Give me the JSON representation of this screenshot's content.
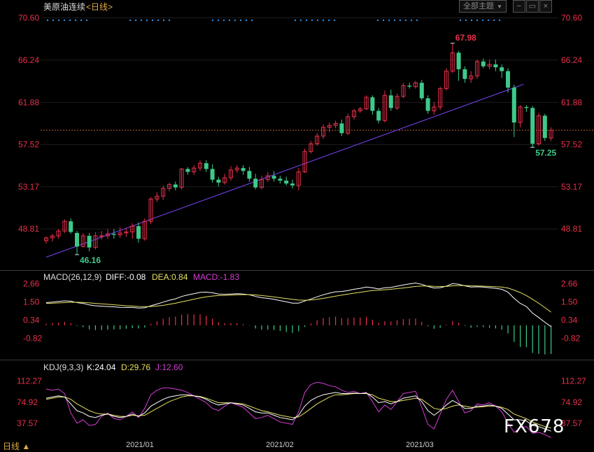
{
  "header": {
    "instrument": "美原油连续",
    "period": "<日线>",
    "theme_button": "全部主题",
    "theme_arrow": "▼"
  },
  "macd": {
    "title": "MACD(26,12,9)",
    "diff_label": "DIFF:-0.08",
    "dea_label": "DEA:0.84",
    "macd_label": "MACD:-1.83",
    "ticks": [
      "2.66",
      "1.50",
      "0.34",
      "-0.82"
    ]
  },
  "kdj": {
    "title": "KDJ(9,3,3)",
    "k_label": "K:24.04",
    "d_label": "D:29.76",
    "j_label": "J:12.60",
    "ticks": [
      "112.27",
      "74.92",
      "37.57"
    ]
  },
  "footer": {
    "period_label": "日线 ▲",
    "watermark": "FX678"
  },
  "colors": {
    "up": "#e8304a",
    "down": "#3ec98a",
    "trendline": "#6a3cd6",
    "dots": "#2a8ee8",
    "diff": "#ffffff",
    "dea": "#e8e060",
    "j": "#d63cd6",
    "axis_text": "#e8304a"
  },
  "chart_data": {
    "type": "candlestick",
    "title": "美原油连续 <日线>",
    "ylim": [
      45.0,
      71.0
    ],
    "y_ticks": [
      48.81,
      53.17,
      57.52,
      61.88,
      66.24,
      70.6
    ],
    "x_ticks": [
      "2021/01",
      "2021/02",
      "2021/03"
    ],
    "high_annotation": "67.98",
    "low_annotation": "46.16",
    "last_low_annotation": "57.25",
    "reference_line": 59.0,
    "trendline": [
      [
        0,
        45.9
      ],
      [
        73,
        63.6
      ]
    ],
    "candles": [
      [
        47.6,
        47.9,
        47.3,
        48.0
      ],
      [
        47.9,
        48.1,
        47.5,
        48.3
      ],
      [
        48.1,
        48.6,
        47.8,
        48.8
      ],
      [
        48.6,
        49.6,
        48.4,
        49.8
      ],
      [
        49.6,
        48.5,
        48.3,
        49.9
      ],
      [
        48.4,
        47.0,
        46.16,
        48.6
      ],
      [
        47.0,
        48.1,
        46.9,
        48.4
      ],
      [
        48.1,
        46.9,
        46.5,
        48.4
      ],
      [
        46.9,
        48.1,
        46.7,
        48.5
      ],
      [
        48.1,
        48.1,
        47.7,
        48.6
      ],
      [
        48.1,
        48.3,
        47.8,
        48.8
      ],
      [
        48.3,
        48.2,
        47.8,
        48.8
      ],
      [
        48.2,
        48.4,
        47.9,
        49.0
      ],
      [
        48.4,
        48.5,
        48.0,
        48.9
      ],
      [
        48.5,
        49.1,
        47.8,
        49.4
      ],
      [
        49.1,
        47.8,
        47.4,
        49.5
      ],
      [
        47.8,
        49.6,
        47.6,
        49.9
      ],
      [
        49.6,
        51.9,
        49.3,
        52.1
      ],
      [
        51.9,
        52.2,
        51.6,
        52.6
      ],
      [
        52.2,
        53.0,
        51.8,
        53.3
      ],
      [
        53.0,
        53.4,
        52.7,
        53.6
      ],
      [
        53.4,
        53.1,
        52.8,
        53.7
      ],
      [
        53.1,
        55.0,
        52.9,
        55.1
      ],
      [
        55.0,
        54.7,
        54.4,
        55.2
      ],
      [
        54.7,
        55.1,
        54.4,
        55.4
      ],
      [
        55.1,
        55.6,
        54.8,
        55.9
      ],
      [
        55.6,
        55.0,
        54.7,
        55.9
      ],
      [
        55.0,
        53.9,
        53.6,
        55.5
      ],
      [
        53.9,
        53.6,
        53.2,
        54.2
      ],
      [
        53.6,
        54.1,
        53.4,
        54.5
      ],
      [
        54.1,
        54.9,
        53.8,
        55.3
      ],
      [
        54.9,
        55.1,
        54.6,
        55.4
      ],
      [
        55.1,
        54.8,
        54.4,
        55.4
      ],
      [
        54.8,
        54.0,
        53.7,
        55.2
      ],
      [
        54.0,
        53.1,
        52.9,
        54.5
      ],
      [
        53.1,
        53.9,
        52.9,
        54.3
      ],
      [
        53.9,
        54.3,
        53.7,
        54.7
      ],
      [
        54.3,
        54.0,
        53.7,
        54.8
      ],
      [
        54.0,
        53.8,
        53.5,
        54.3
      ],
      [
        53.8,
        53.5,
        53.3,
        54.2
      ],
      [
        53.5,
        53.3,
        53.0,
        53.9
      ],
      [
        53.3,
        54.7,
        52.8,
        55.1
      ],
      [
        54.7,
        56.8,
        54.6,
        57.1
      ],
      [
        56.8,
        57.6,
        56.6,
        57.9
      ],
      [
        57.6,
        58.4,
        57.4,
        58.7
      ],
      [
        58.4,
        59.3,
        58.1,
        59.6
      ],
      [
        59.3,
        59.5,
        58.8,
        59.8
      ],
      [
        59.5,
        59.7,
        59.2,
        60.0
      ],
      [
        59.7,
        58.7,
        58.4,
        60.1
      ],
      [
        58.7,
        60.4,
        58.5,
        60.7
      ],
      [
        60.4,
        61.0,
        60.1,
        61.2
      ],
      [
        61.0,
        61.2,
        60.8,
        61.4
      ],
      [
        61.2,
        62.4,
        61.1,
        62.6
      ],
      [
        62.4,
        61.0,
        60.6,
        62.6
      ],
      [
        61.0,
        60.0,
        59.7,
        61.3
      ],
      [
        60.0,
        62.6,
        59.8,
        63.1
      ],
      [
        62.6,
        61.3,
        61.0,
        63.2
      ],
      [
        61.3,
        62.5,
        61.1,
        62.8
      ],
      [
        62.5,
        63.6,
        62.3,
        63.9
      ],
      [
        63.6,
        63.5,
        63.3,
        63.9
      ],
      [
        63.5,
        63.9,
        63.3,
        64.1
      ],
      [
        63.9,
        62.3,
        62.1,
        64.2
      ],
      [
        62.3,
        61.0,
        60.7,
        62.6
      ],
      [
        61.0,
        61.4,
        60.6,
        61.9
      ],
      [
        61.4,
        63.3,
        61.1,
        63.5
      ],
      [
        63.3,
        65.1,
        63.1,
        65.4
      ],
      [
        65.1,
        67.0,
        64.9,
        67.98
      ],
      [
        67.0,
        65.3,
        64.1,
        67.2
      ],
      [
        65.3,
        64.3,
        63.9,
        65.6
      ],
      [
        64.3,
        64.6,
        63.9,
        65.1
      ],
      [
        64.6,
        66.1,
        64.3,
        66.3
      ],
      [
        66.1,
        65.6,
        65.4,
        66.4
      ],
      [
        65.6,
        65.8,
        65.3,
        66.3
      ],
      [
        65.8,
        65.5,
        65.1,
        66.3
      ],
      [
        65.5,
        65.1,
        64.4,
        65.8
      ],
      [
        65.1,
        63.4,
        62.9,
        65.4
      ],
      [
        63.4,
        59.8,
        58.3,
        63.7
      ],
      [
        59.8,
        61.4,
        59.3,
        61.6
      ],
      [
        61.4,
        61.3,
        60.9,
        61.6
      ],
      [
        61.3,
        57.6,
        57.25,
        61.5
      ],
      [
        57.6,
        60.5,
        57.4,
        60.8
      ],
      [
        60.5,
        58.2,
        57.9,
        60.7
      ],
      [
        58.2,
        59.0,
        57.9,
        59.3
      ]
    ],
    "macd_ylim": [
      -2.1,
      2.9
    ],
    "diff": [
      1.45,
      1.48,
      1.52,
      1.56,
      1.54,
      1.45,
      1.4,
      1.3,
      1.25,
      1.22,
      1.2,
      1.18,
      1.15,
      1.14,
      1.14,
      1.1,
      1.12,
      1.25,
      1.36,
      1.48,
      1.6,
      1.69,
      1.84,
      1.94,
      2.02,
      2.1,
      2.12,
      2.08,
      2.0,
      1.98,
      2.0,
      2.02,
      2.0,
      1.95,
      1.84,
      1.76,
      1.72,
      1.66,
      1.58,
      1.5,
      1.42,
      1.42,
      1.55,
      1.68,
      1.82,
      1.95,
      2.05,
      2.14,
      2.16,
      2.22,
      2.3,
      2.36,
      2.44,
      2.4,
      2.32,
      2.4,
      2.42,
      2.5,
      2.58,
      2.64,
      2.7,
      2.62,
      2.48,
      2.38,
      2.4,
      2.5,
      2.66,
      2.62,
      2.52,
      2.44,
      2.46,
      2.44,
      2.4,
      2.36,
      2.3,
      2.12,
      1.72,
      1.4,
      1.2,
      0.78,
      0.5,
      0.2,
      -0.08
    ],
    "dea": [
      1.4,
      1.41,
      1.43,
      1.45,
      1.47,
      1.47,
      1.46,
      1.43,
      1.4,
      1.37,
      1.34,
      1.31,
      1.28,
      1.25,
      1.23,
      1.2,
      1.19,
      1.2,
      1.23,
      1.27,
      1.34,
      1.41,
      1.5,
      1.58,
      1.67,
      1.75,
      1.82,
      1.87,
      1.9,
      1.91,
      1.93,
      1.95,
      1.96,
      1.96,
      1.94,
      1.9,
      1.86,
      1.81,
      1.76,
      1.71,
      1.66,
      1.61,
      1.6,
      1.62,
      1.66,
      1.72,
      1.79,
      1.86,
      1.93,
      1.99,
      2.05,
      2.11,
      2.17,
      2.22,
      2.24,
      2.27,
      2.3,
      2.34,
      2.38,
      2.43,
      2.48,
      2.51,
      2.51,
      2.49,
      2.48,
      2.48,
      2.52,
      2.54,
      2.54,
      2.52,
      2.51,
      2.5,
      2.48,
      2.46,
      2.44,
      2.38,
      2.25,
      2.09,
      1.9,
      1.66,
      1.41,
      1.13,
      0.84
    ],
    "macd": [
      0.1,
      0.14,
      0.18,
      0.22,
      0.14,
      -0.04,
      -0.12,
      -0.26,
      -0.3,
      -0.3,
      -0.28,
      -0.26,
      -0.26,
      -0.22,
      -0.18,
      -0.2,
      -0.14,
      0.1,
      0.26,
      0.42,
      0.52,
      0.56,
      0.68,
      0.72,
      0.7,
      0.7,
      0.6,
      0.42,
      0.2,
      0.14,
      0.14,
      0.14,
      0.08,
      -0.02,
      -0.2,
      -0.28,
      -0.28,
      -0.3,
      -0.36,
      -0.42,
      -0.48,
      -0.38,
      -0.1,
      0.12,
      0.32,
      0.46,
      0.52,
      0.56,
      0.46,
      0.46,
      0.5,
      0.5,
      0.54,
      0.36,
      0.16,
      0.26,
      0.24,
      0.32,
      0.4,
      0.42,
      0.44,
      0.22,
      -0.06,
      -0.22,
      -0.16,
      0.04,
      0.28,
      0.16,
      -0.04,
      -0.16,
      -0.1,
      -0.12,
      -0.16,
      -0.2,
      -0.28,
      -0.52,
      -1.06,
      -1.38,
      -1.4,
      -1.76,
      -1.82,
      -1.86,
      -1.83
    ],
    "kdj_ylim": [
      12,
      130
    ],
    "k": [
      82,
      84,
      86,
      84,
      72,
      60,
      56,
      50,
      48,
      52,
      54,
      50,
      48,
      50,
      54,
      50,
      56,
      68,
      74,
      80,
      84,
      86,
      88,
      88,
      86,
      84,
      80,
      74,
      70,
      72,
      74,
      72,
      70,
      64,
      58,
      56,
      56,
      52,
      48,
      46,
      44,
      52,
      68,
      78,
      84,
      88,
      90,
      92,
      90,
      90,
      91,
      90,
      91,
      84,
      74,
      76,
      72,
      76,
      82,
      84,
      86,
      76,
      60,
      52,
      60,
      70,
      78,
      72,
      64,
      64,
      68,
      68,
      70,
      68,
      64,
      54,
      44,
      44,
      42,
      34,
      32,
      28,
      24
    ],
    "d": [
      80,
      82,
      84,
      84,
      80,
      72,
      66,
      60,
      56,
      54,
      54,
      52,
      50,
      50,
      52,
      51,
      52,
      58,
      64,
      70,
      76,
      80,
      84,
      86,
      86,
      85,
      82,
      78,
      74,
      74,
      74,
      73,
      72,
      68,
      64,
      60,
      58,
      55,
      52,
      50,
      48,
      49,
      56,
      64,
      72,
      78,
      84,
      88,
      88,
      89,
      90,
      90,
      90,
      88,
      82,
      79,
      76,
      76,
      78,
      80,
      82,
      80,
      72,
      64,
      62,
      64,
      68,
      70,
      68,
      66,
      66,
      67,
      68,
      68,
      66,
      62,
      54,
      50,
      46,
      40,
      36,
      32,
      29.76
    ],
    "j": [
      98,
      96,
      98,
      90,
      56,
      38,
      44,
      34,
      36,
      50,
      56,
      46,
      44,
      50,
      58,
      48,
      64,
      88,
      96,
      100,
      100,
      98,
      96,
      92,
      86,
      80,
      74,
      64,
      60,
      68,
      74,
      70,
      66,
      56,
      46,
      48,
      52,
      46,
      40,
      38,
      36,
      58,
      92,
      106,
      110,
      108,
      104,
      102,
      96,
      92,
      94,
      90,
      92,
      76,
      58,
      70,
      62,
      76,
      90,
      92,
      94,
      66,
      36,
      28,
      54,
      80,
      96,
      76,
      56,
      60,
      72,
      70,
      74,
      68,
      58,
      38,
      22,
      30,
      32,
      20,
      22,
      18,
      12.6
    ]
  }
}
